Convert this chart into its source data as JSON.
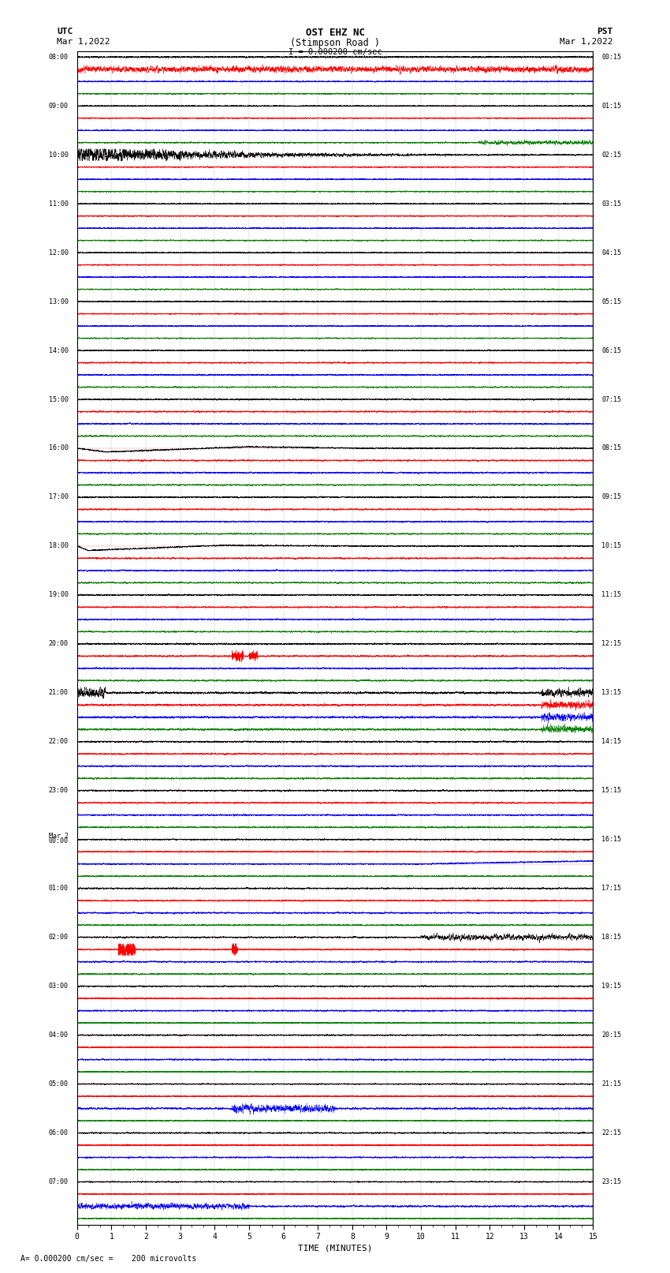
{
  "title_line1": "OST EHZ NC",
  "title_line2": "(Stimpson Road )",
  "scale_text": "I = 0.000200 cm/sec",
  "bottom_note": "= 0.000200 cm/sec =    200 microvolts",
  "utc_label": "UTC",
  "pst_label": "PST",
  "date_left": "Mar 1,2022",
  "date_right": "Mar 1,2022",
  "xlabel": "TIME (MINUTES)",
  "xmin": 0,
  "xmax": 15,
  "background_color": "#ffffff",
  "hour_labels_utc": [
    "08:00",
    "09:00",
    "10:00",
    "11:00",
    "12:00",
    "13:00",
    "14:00",
    "15:00",
    "16:00",
    "17:00",
    "18:00",
    "19:00",
    "20:00",
    "21:00",
    "22:00",
    "23:00",
    "Mar 2\n00:00",
    "01:00",
    "02:00",
    "03:00",
    "04:00",
    "05:00",
    "06:00",
    "07:00"
  ],
  "hour_labels_pst": [
    "00:15",
    "01:15",
    "02:15",
    "03:15",
    "04:15",
    "05:15",
    "06:15",
    "07:15",
    "08:15",
    "09:15",
    "10:15",
    "11:15",
    "12:15",
    "13:15",
    "14:15",
    "15:15",
    "16:15",
    "17:15",
    "18:15",
    "19:15",
    "20:15",
    "21:15",
    "22:15",
    "23:15"
  ],
  "n_hours": 24,
  "traces_per_hour": 4,
  "trace_colors": [
    "black",
    "red",
    "blue",
    "green"
  ],
  "noise_amp": 0.06,
  "grid_color": "#888888"
}
